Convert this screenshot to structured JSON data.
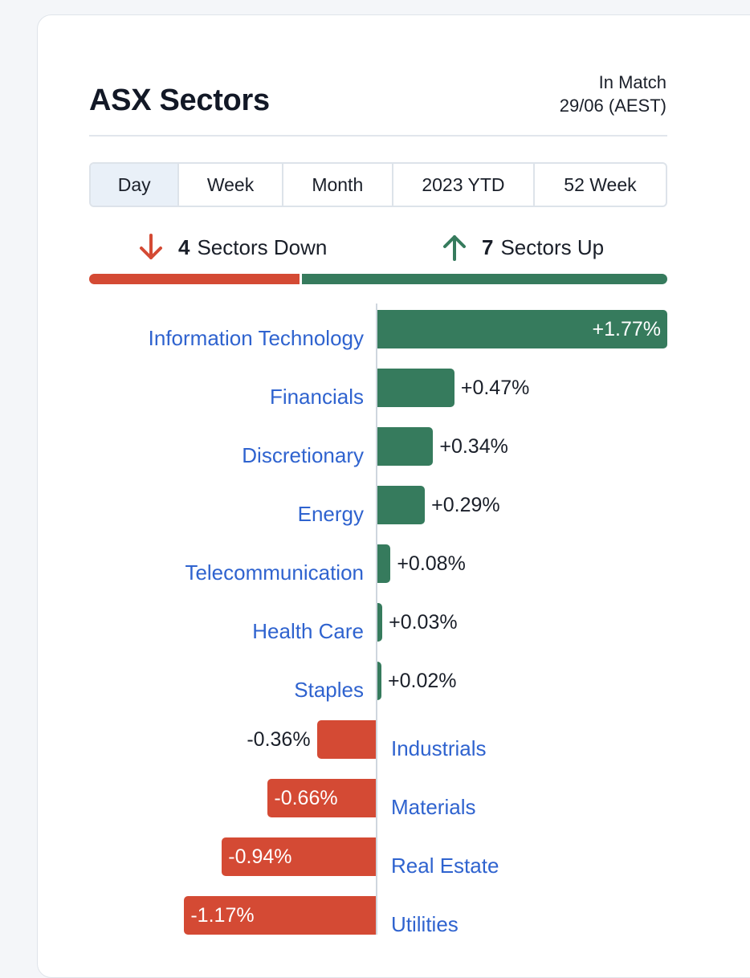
{
  "widget": {
    "title": "ASX Sectors",
    "status_line1": "In Match",
    "status_line2": "29/06 (AEST)"
  },
  "tabs": [
    {
      "label": "Day",
      "active": true
    },
    {
      "label": "Week",
      "active": false
    },
    {
      "label": "Month",
      "active": false
    },
    {
      "label": "2023 YTD",
      "active": false
    },
    {
      "label": "52 Week",
      "active": false
    }
  ],
  "breadth": {
    "down_count": "4",
    "down_label": "Sectors Down",
    "up_count": "7",
    "up_label": "Sectors Up",
    "down_color": "#d44a34",
    "up_color": "#367b5d"
  },
  "colors": {
    "positive": "#367b5d",
    "negative": "#d44a34",
    "link": "#2f63cf"
  },
  "chart_data": {
    "type": "bar",
    "orientation": "horizontal",
    "categories": [
      "Information Technology",
      "Financials",
      "Discretionary",
      "Energy",
      "Telecommunication",
      "Health Care",
      "Staples",
      "Industrials",
      "Materials",
      "Real Estate",
      "Utilities"
    ],
    "values": [
      1.77,
      0.47,
      0.34,
      0.29,
      0.08,
      0.03,
      0.02,
      -0.36,
      -0.66,
      -0.94,
      -1.17
    ],
    "labels": [
      "+1.77%",
      "+0.47%",
      "+0.34%",
      "+0.29%",
      "+0.08%",
      "+0.03%",
      "+0.02%",
      "-0.36%",
      "-0.66%",
      "-0.94%",
      "-1.17%"
    ],
    "unit": "%",
    "title": "",
    "xlabel": "",
    "ylabel": ""
  }
}
